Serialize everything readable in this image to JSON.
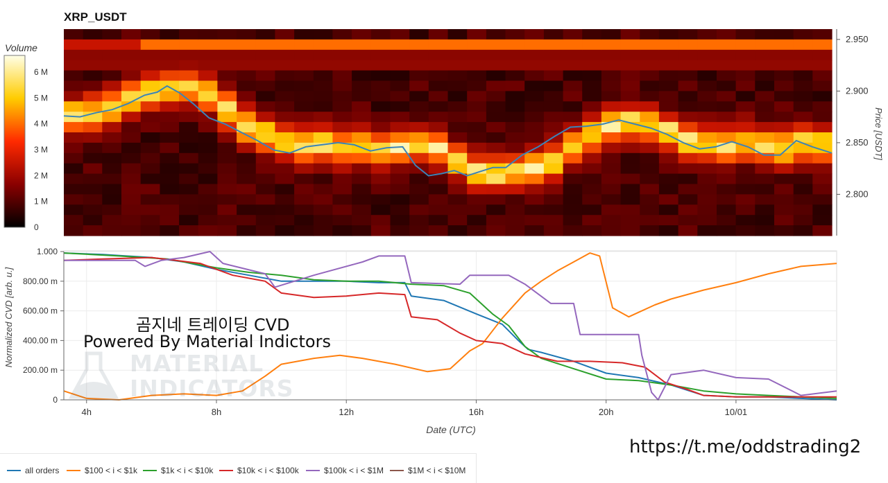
{
  "header": {
    "title": "XRP_USDT"
  },
  "colorbar": {
    "title": "Volume",
    "ticks": [
      "6 M",
      "5 M",
      "4 M",
      "3 M",
      "2 M",
      "1 M",
      "0"
    ]
  },
  "overlay": {
    "line1": "곰지네 트레이딩 CVD",
    "line2": "Powered By Material Indictors",
    "link": "https://t.me/oddstrading2",
    "watermark_line1": "MATERIAL",
    "watermark_line2": "INDICATORS"
  },
  "chart_data": [
    {
      "type": "heatmap",
      "title": "XRP_USDT",
      "ylabel": "Price [USDT]",
      "ylim": [
        2.76,
        2.96
      ],
      "y_ticks": [
        "2.950",
        "2.900",
        "2.850",
        "2.800"
      ],
      "y_tick_values": [
        2.95,
        2.9,
        2.85,
        2.8
      ],
      "x_range_hours": [
        3.3,
        27.1
      ],
      "colorbar_label": "Volume",
      "colorbar_range": [
        0,
        6.5
      ],
      "colorbar_unit": "M",
      "price_line": {
        "x": [
          3.3,
          3.8,
          4.3,
          4.8,
          5.3,
          5.8,
          6.2,
          6.5,
          6.9,
          7.3,
          7.8,
          8.3,
          8.8,
          9.3,
          9.8,
          10.3,
          10.8,
          11.3,
          11.8,
          12.3,
          12.8,
          13.3,
          13.8,
          14.2,
          14.6,
          15.0,
          15.4,
          15.8,
          16.2,
          16.6,
          17.0,
          17.5,
          18.0,
          18.5,
          19.0,
          19.5,
          20.0,
          20.5,
          21.0,
          21.5,
          22.0,
          22.5,
          23.0,
          23.5,
          24.0,
          24.5,
          25.0,
          25.5,
          26.0,
          26.5,
          27.1
        ],
        "price": [
          2.876,
          2.875,
          2.879,
          2.882,
          2.888,
          2.896,
          2.899,
          2.905,
          2.898,
          2.888,
          2.874,
          2.868,
          2.86,
          2.852,
          2.843,
          2.84,
          2.846,
          2.848,
          2.85,
          2.848,
          2.842,
          2.845,
          2.846,
          2.828,
          2.818,
          2.82,
          2.823,
          2.818,
          2.822,
          2.826,
          2.826,
          2.838,
          2.846,
          2.856,
          2.865,
          2.866,
          2.868,
          2.872,
          2.868,
          2.864,
          2.858,
          2.85,
          2.844,
          2.846,
          2.851,
          2.846,
          2.838,
          2.838,
          2.852,
          2.846,
          2.84
        ]
      },
      "band_center": [
        2.876,
        2.878,
        2.884,
        2.892,
        2.9,
        2.904,
        2.904,
        2.896,
        2.882,
        2.866,
        2.858,
        2.852,
        2.848,
        2.848,
        2.846,
        2.846,
        2.844,
        2.846,
        2.848,
        2.844,
        2.832,
        2.822,
        2.82,
        2.822,
        2.824,
        2.832,
        2.846,
        2.858,
        2.866,
        2.87,
        2.866,
        2.86,
        2.852,
        2.848,
        2.848,
        2.85,
        2.846,
        2.844,
        2.848,
        2.848
      ]
    },
    {
      "type": "line",
      "xlabel": "Date (UTC)",
      "ylabel": "Normalized CVD [arb. u.]",
      "ylim": [
        0,
        1.0
      ],
      "xlim_hours": [
        3.3,
        27.1
      ],
      "x_ticks": [
        "4h",
        "8h",
        "12h",
        "16h",
        "20h",
        "10/01"
      ],
      "x_tick_hours": [
        4,
        8,
        12,
        16,
        20,
        24
      ],
      "y_ticks": [
        "1.000",
        "800.00 m",
        "600.00 m",
        "400.00 m",
        "200.00 m",
        "0"
      ],
      "y_tick_values": [
        1.0,
        0.8,
        0.6,
        0.4,
        0.2,
        0
      ],
      "grid": true,
      "legend_position": "bottom-left",
      "series": [
        {
          "name": "all orders",
          "color": "#1f77b4",
          "x": [
            3.3,
            4.5,
            6.0,
            7.0,
            8.0,
            9.0,
            10.0,
            11.0,
            12.0,
            13.0,
            13.8,
            14.0,
            15.0,
            16.0,
            16.8,
            17.3,
            17.6,
            18.0,
            19.0,
            20.0,
            21.0,
            22.0,
            23.0,
            24.0,
            25.0,
            26.0,
            27.1
          ],
          "y": [
            0.99,
            0.98,
            0.96,
            0.93,
            0.88,
            0.84,
            0.8,
            0.8,
            0.8,
            0.79,
            0.79,
            0.7,
            0.67,
            0.58,
            0.51,
            0.4,
            0.34,
            0.32,
            0.26,
            0.18,
            0.15,
            0.1,
            0.03,
            0.02,
            0.02,
            0.01,
            0.0
          ]
        },
        {
          "name": "$100 < i < $1k",
          "color": "#ff7f0e",
          "x": [
            3.3,
            4.0,
            5.0,
            6.0,
            7.0,
            8.0,
            8.8,
            9.5,
            10.0,
            10.5,
            11.0,
            11.8,
            12.5,
            13.5,
            14.5,
            15.2,
            15.8,
            16.2,
            16.8,
            17.5,
            18.0,
            18.5,
            19.0,
            19.5,
            19.8,
            20.2,
            20.7,
            21.0,
            21.5,
            22.0,
            23.0,
            24.0,
            25.0,
            26.0,
            27.1
          ],
          "y": [
            0.06,
            0.01,
            0.0,
            0.03,
            0.04,
            0.03,
            0.06,
            0.16,
            0.24,
            0.26,
            0.28,
            0.3,
            0.28,
            0.24,
            0.19,
            0.21,
            0.33,
            0.38,
            0.55,
            0.72,
            0.8,
            0.87,
            0.93,
            0.99,
            0.97,
            0.62,
            0.56,
            0.59,
            0.64,
            0.68,
            0.74,
            0.79,
            0.85,
            0.9,
            0.92
          ]
        },
        {
          "name": "$1k < i < $10k",
          "color": "#2ca02c",
          "x": [
            3.3,
            5.0,
            6.5,
            8.0,
            9.0,
            10.0,
            11.0,
            12.0,
            13.0,
            14.0,
            15.0,
            15.8,
            16.5,
            17.0,
            17.5,
            18.0,
            19.0,
            20.0,
            21.0,
            22.0,
            23.0,
            24.0,
            25.0,
            26.0,
            27.1
          ],
          "y": [
            0.99,
            0.97,
            0.95,
            0.89,
            0.86,
            0.84,
            0.81,
            0.8,
            0.8,
            0.78,
            0.77,
            0.72,
            0.58,
            0.5,
            0.36,
            0.28,
            0.21,
            0.14,
            0.13,
            0.1,
            0.06,
            0.04,
            0.03,
            0.02,
            0.01
          ]
        },
        {
          "name": "$10k < i < $100k",
          "color": "#d62728",
          "x": [
            3.3,
            4.5,
            6.0,
            7.5,
            8.5,
            9.5,
            10.0,
            11.0,
            12.0,
            13.0,
            13.8,
            14.0,
            14.8,
            15.5,
            16.0,
            16.8,
            17.5,
            18.5,
            19.5,
            20.5,
            21.2,
            21.8,
            22.5,
            23.0,
            24.0,
            25.0,
            26.0,
            27.1
          ],
          "y": [
            0.94,
            0.95,
            0.96,
            0.92,
            0.84,
            0.8,
            0.72,
            0.69,
            0.7,
            0.72,
            0.71,
            0.56,
            0.54,
            0.45,
            0.4,
            0.38,
            0.31,
            0.26,
            0.26,
            0.25,
            0.22,
            0.12,
            0.07,
            0.03,
            0.02,
            0.02,
            0.02,
            0.02
          ]
        },
        {
          "name": "$100k < i < $1M",
          "color": "#9467bd",
          "x": [
            3.3,
            5.5,
            5.8,
            6.3,
            7.0,
            7.8,
            8.2,
            9.5,
            9.8,
            11.0,
            12.5,
            13.0,
            13.8,
            14.0,
            15.5,
            15.8,
            16.0,
            17.0,
            17.5,
            18.3,
            19.0,
            19.2,
            20.0,
            21.0,
            21.1,
            21.4,
            21.6,
            22.0,
            23.0,
            24.0,
            25.0,
            26.0,
            27.1
          ],
          "y": [
            0.94,
            0.94,
            0.9,
            0.94,
            0.96,
            1.0,
            0.92,
            0.85,
            0.76,
            0.84,
            0.93,
            0.97,
            0.97,
            0.79,
            0.78,
            0.84,
            0.84,
            0.84,
            0.78,
            0.65,
            0.65,
            0.44,
            0.44,
            0.44,
            0.3,
            0.05,
            0.0,
            0.17,
            0.2,
            0.15,
            0.14,
            0.03,
            0.06
          ]
        },
        {
          "name": "$1M < i < $10M",
          "color": "#8c564b",
          "x": [],
          "y": []
        }
      ]
    }
  ]
}
